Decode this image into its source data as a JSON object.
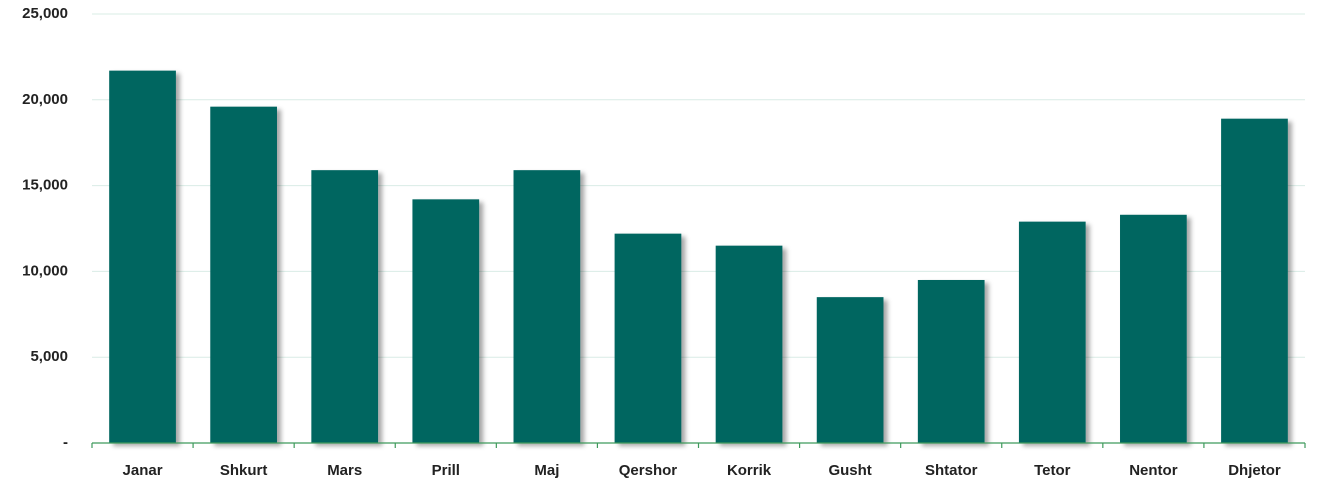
{
  "chart_data": {
    "type": "bar",
    "categories": [
      "Janar",
      "Shkurt",
      "Mars",
      "Prill",
      "Maj",
      "Qershor",
      "Korrik",
      "Gusht",
      "Shtator",
      "Tetor",
      "Nentor",
      "Dhjetor"
    ],
    "values": [
      21700,
      19600,
      15900,
      14200,
      15900,
      12200,
      11500,
      8500,
      9500,
      12900,
      13300,
      18900
    ],
    "color": "#006661",
    "ylim": [
      0,
      25000
    ],
    "yticks": [
      {
        "value": 0,
        "label": "-"
      },
      {
        "value": 5000,
        "label": "5,000"
      },
      {
        "value": 10000,
        "label": "10,000"
      },
      {
        "value": 15000,
        "label": "15,000"
      },
      {
        "value": 20000,
        "label": "20,000"
      },
      {
        "value": 25000,
        "label": "25,000"
      }
    ],
    "grid": true
  }
}
